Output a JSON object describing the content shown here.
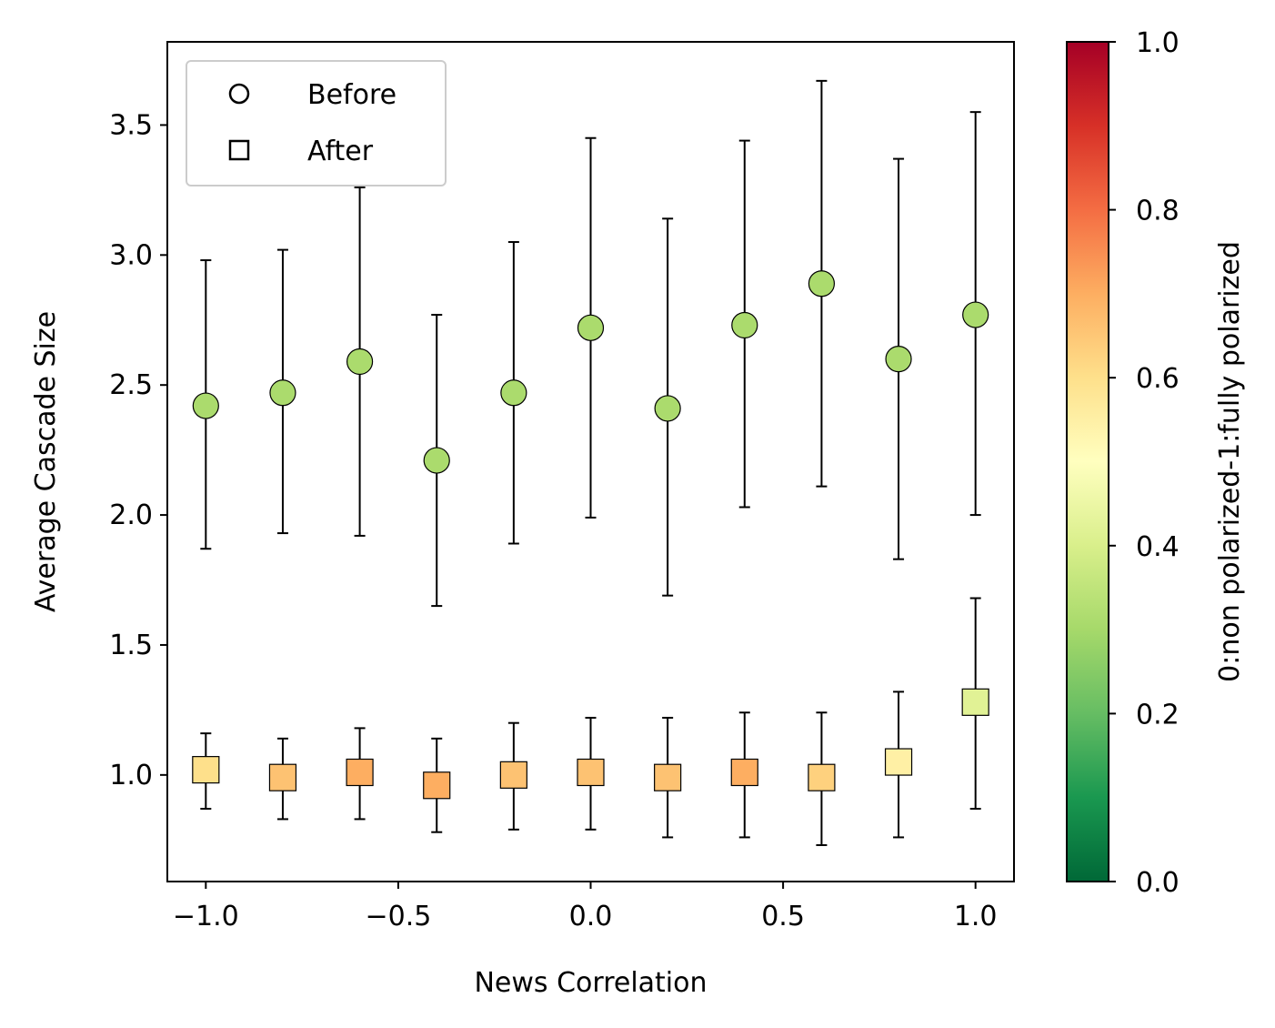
{
  "chart_data": {
    "type": "scatter",
    "title": "",
    "xlabel": "News Correlation",
    "ylabel": "Average Cascade Size",
    "xlim": [
      -1.1,
      1.1
    ],
    "ylim": [
      0.59,
      3.82
    ],
    "xticks": [
      -1.0,
      -0.5,
      0.0,
      0.5,
      1.0
    ],
    "xtick_labels": [
      "−1.0",
      "−0.5",
      "0.0",
      "0.5",
      "1.0"
    ],
    "yticks": [
      1.0,
      1.5,
      2.0,
      2.5,
      3.0,
      3.5
    ],
    "ytick_labels": [
      "1.0",
      "1.5",
      "2.0",
      "2.5",
      "3.0",
      "3.5"
    ],
    "grid": false,
    "legend": {
      "placement": "upper-left",
      "entries": [
        {
          "label": "Before",
          "marker": "circle"
        },
        {
          "label": "After",
          "marker": "square"
        }
      ]
    },
    "x": [
      -1.0,
      -0.8,
      -0.6,
      -0.4,
      -0.2,
      0.0,
      0.2,
      0.4,
      0.6,
      0.8,
      1.0
    ],
    "series": [
      {
        "label": "Before",
        "marker": "circle",
        "values": [
          2.42,
          2.47,
          2.59,
          2.21,
          2.47,
          2.72,
          2.41,
          2.73,
          2.89,
          2.6,
          2.77
        ],
        "err_low": [
          1.87,
          1.93,
          1.92,
          1.65,
          1.89,
          1.99,
          1.69,
          2.03,
          2.11,
          1.83,
          2.0
        ],
        "err_high": [
          2.98,
          3.02,
          3.26,
          2.77,
          3.05,
          3.45,
          3.14,
          3.44,
          3.67,
          3.37,
          3.55
        ],
        "color_values": [
          0.31,
          0.31,
          0.31,
          0.31,
          0.31,
          0.31,
          0.31,
          0.31,
          0.31,
          0.31,
          0.31
        ]
      },
      {
        "label": "After",
        "marker": "square",
        "values": [
          1.02,
          0.99,
          1.01,
          0.96,
          1.0,
          1.01,
          0.99,
          1.01,
          0.99,
          1.05,
          1.28
        ],
        "err_low": [
          0.87,
          0.83,
          0.83,
          0.78,
          0.79,
          0.79,
          0.76,
          0.76,
          0.73,
          0.76,
          0.87
        ],
        "err_high": [
          1.16,
          1.14,
          1.18,
          1.14,
          1.2,
          1.22,
          1.22,
          1.24,
          1.24,
          1.32,
          1.68
        ],
        "color_values": [
          0.6,
          0.66,
          0.7,
          0.7,
          0.66,
          0.66,
          0.66,
          0.7,
          0.63,
          0.55,
          0.42
        ]
      }
    ],
    "colorbar": {
      "label": "0:non polarized-1:fully polarized",
      "range": [
        0.0,
        1.0
      ],
      "ticks": [
        0.0,
        0.2,
        0.4,
        0.6,
        0.8,
        1.0
      ],
      "tick_labels": [
        "0.0",
        "0.2",
        "0.4",
        "0.6",
        "0.8",
        "1.0"
      ],
      "colormap": "RdYlGn_r",
      "stops": [
        "#006837",
        "#1a9850",
        "#66bd63",
        "#a6d96a",
        "#d9ef8b",
        "#ffffbf",
        "#fee08b",
        "#fdae61",
        "#f46d43",
        "#d73027",
        "#a50026"
      ]
    }
  }
}
